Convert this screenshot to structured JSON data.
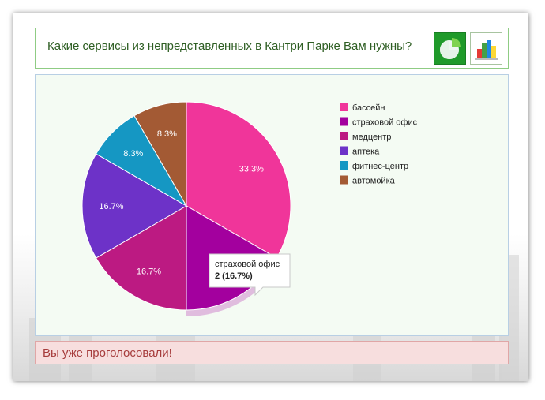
{
  "question": "Какие сервисы из непредставленных в Кантри Парке Вам нужны?",
  "buttons": {
    "pie_icon": "pie-chart-icon",
    "bar_icon": "bar-chart-icon"
  },
  "alert_text": "Вы уже проголосовали!",
  "chart_data": {
    "type": "pie",
    "slices": [
      {
        "label": "бассейн",
        "value": 4,
        "percent": "33.3%",
        "color": "#f0359a"
      },
      {
        "label": "страховой офис",
        "value": 2,
        "percent": "16.7%",
        "color": "#a3009e"
      },
      {
        "label": "медцентр",
        "value": 2,
        "percent": "16.7%",
        "color": "#bc1a82"
      },
      {
        "label": "аптека",
        "value": 2,
        "percent": "16.7%",
        "color": "#6d32c8"
      },
      {
        "label": "фитнес-центр",
        "value": 1,
        "percent": "8.3%",
        "color": "#1597c3"
      },
      {
        "label": "автомойка",
        "value": 1,
        "percent": "8.3%",
        "color": "#a35a34"
      }
    ],
    "legend_position": "right",
    "highlighted_index": 1,
    "tooltip": {
      "label": "страховой офис",
      "value_text": "2 (16.7%)"
    }
  }
}
